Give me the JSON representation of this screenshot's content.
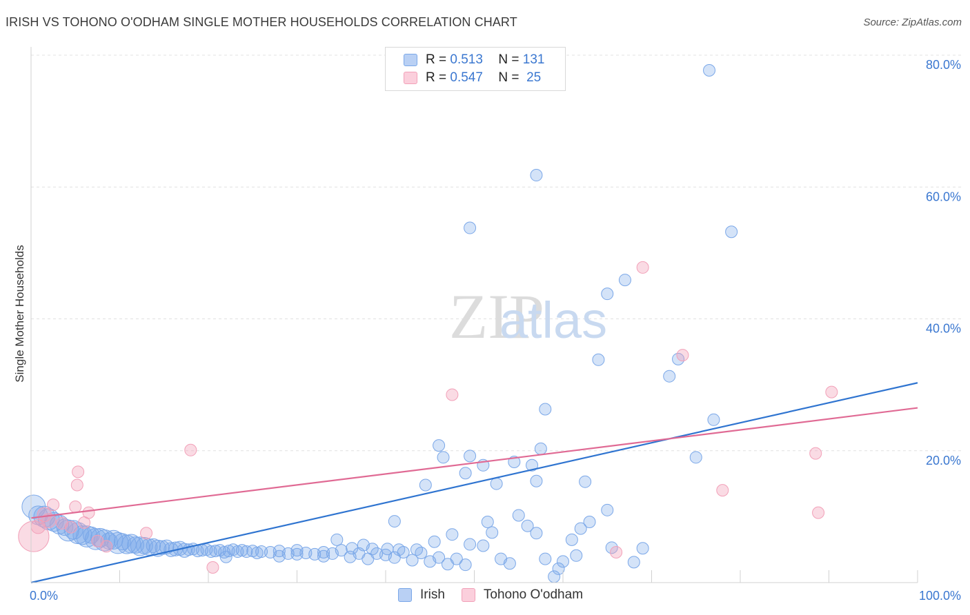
{
  "header": {
    "title": "IRISH VS TOHONO O'ODHAM SINGLE MOTHER HOUSEHOLDS CORRELATION CHART",
    "source": "Source: ZipAtlas.com"
  },
  "watermark": {
    "zip": "ZIP",
    "atlas": "atlas"
  },
  "legend": {
    "r_label": "R =",
    "n_label": "N =",
    "irish": {
      "r": "0.513",
      "n": "131",
      "color": "#7aa7e8"
    },
    "tohono": {
      "r": "0.547",
      "n": "25",
      "color": "#f2a0b8"
    }
  },
  "bottom_legend": {
    "irish": "Irish",
    "tohono": "Tohono O'odham"
  },
  "chart_data": {
    "type": "scatter",
    "title": "IRISH VS TOHONO O'ODHAM SINGLE MOTHER HOUSEHOLDS CORRELATION CHART",
    "xlabel": "",
    "ylabel": "Single Mother Households",
    "xlim": [
      0,
      100
    ],
    "ylim": [
      0,
      80
    ],
    "x_tick_labels": [
      "0.0%",
      "100.0%"
    ],
    "y_ticks": [
      20,
      40,
      60,
      80
    ],
    "y_tick_labels": [
      "20.0%",
      "40.0%",
      "60.0%",
      "80.0%"
    ],
    "series": [
      {
        "name": "Irish",
        "color": "#7aa7e8",
        "trend_color": "#2f74d0",
        "trend": {
          "x": [
            0,
            100
          ],
          "y": [
            0,
            30.3
          ]
        },
        "points": [
          [
            0.3,
            11.5,
            20
          ],
          [
            0.8,
            10.2,
            16
          ],
          [
            1.5,
            10.0,
            18
          ],
          [
            2,
            9.6,
            18
          ],
          [
            2.6,
            9.2,
            16
          ],
          [
            3.2,
            8.8,
            16
          ],
          [
            3.8,
            8.4,
            14
          ],
          [
            4.2,
            7.9,
            18
          ],
          [
            4.8,
            8.0,
            16
          ],
          [
            5.3,
            7.5,
            18
          ],
          [
            5.8,
            7.2,
            16
          ],
          [
            6.3,
            7.0,
            18
          ],
          [
            6.8,
            7.2,
            14
          ],
          [
            7.3,
            6.6,
            18
          ],
          [
            7.8,
            6.8,
            16
          ],
          [
            8.3,
            6.4,
            18
          ],
          [
            8.8,
            6.3,
            14
          ],
          [
            9.3,
            6.5,
            16
          ],
          [
            9.8,
            6.0,
            18
          ],
          [
            10.3,
            6.2,
            14
          ],
          [
            10.8,
            5.8,
            16
          ],
          [
            11.3,
            5.9,
            16
          ],
          [
            11.8,
            5.7,
            14
          ],
          [
            12.3,
            5.5,
            16
          ],
          [
            12.8,
            5.6,
            14
          ],
          [
            13.3,
            5.4,
            14
          ],
          [
            13.8,
            5.6,
            12
          ],
          [
            14.3,
            5.2,
            14
          ],
          [
            14.8,
            5.3,
            12
          ],
          [
            15.3,
            5.4,
            12
          ],
          [
            15.8,
            5.0,
            12
          ],
          [
            16.3,
            5.1,
            12
          ],
          [
            16.8,
            5.2,
            12
          ],
          [
            17.3,
            4.9,
            12
          ],
          [
            17.8,
            5.0,
            10
          ],
          [
            18.3,
            5.1,
            10
          ],
          [
            18.8,
            4.8,
            10
          ],
          [
            19.3,
            4.9,
            10
          ],
          [
            19.8,
            5.0,
            10
          ],
          [
            20.3,
            4.7,
            10
          ],
          [
            20.8,
            4.8,
            10
          ],
          [
            21.3,
            4.9,
            10
          ],
          [
            21.8,
            4.6,
            10
          ],
          [
            22.3,
            4.8,
            10
          ],
          [
            22.8,
            5.0,
            10
          ],
          [
            23.3,
            4.7,
            10
          ],
          [
            23.8,
            4.9,
            10
          ],
          [
            24.3,
            4.7,
            10
          ],
          [
            25,
            4.8,
            10
          ],
          [
            25.5,
            4.5,
            10
          ],
          [
            26,
            4.7,
            10
          ],
          [
            27,
            4.6,
            10
          ],
          [
            28,
            4.8,
            10
          ],
          [
            29,
            4.4,
            10
          ],
          [
            30,
            4.9,
            10
          ],
          [
            31,
            4.5,
            10
          ],
          [
            32,
            4.3,
            10
          ],
          [
            33,
            4.6,
            10
          ],
          [
            34,
            4.4,
            10
          ],
          [
            35,
            4.9,
            10
          ],
          [
            22,
            3.9,
            10
          ],
          [
            28,
            4.0,
            10
          ],
          [
            30,
            4.3,
            10
          ],
          [
            33,
            4.0,
            10
          ],
          [
            36,
            3.9,
            10
          ],
          [
            37,
            4.4,
            10
          ],
          [
            38,
            3.6,
            10
          ],
          [
            39,
            4.4,
            10
          ],
          [
            40,
            4.2,
            10
          ],
          [
            41,
            3.8,
            10
          ],
          [
            42,
            4.6,
            10
          ],
          [
            43,
            3.4,
            10
          ],
          [
            44,
            4.5,
            10
          ],
          [
            45,
            3.2,
            10
          ],
          [
            46,
            3.8,
            10
          ],
          [
            47,
            2.8,
            10
          ],
          [
            48,
            3.6,
            10
          ],
          [
            49,
            2.7,
            10
          ],
          [
            34.5,
            6.5,
            10
          ],
          [
            36.2,
            5.2,
            10
          ],
          [
            37.5,
            5.7,
            10
          ],
          [
            38.5,
            5.1,
            10
          ],
          [
            40.2,
            5.1,
            10
          ],
          [
            41.5,
            5.0,
            10
          ],
          [
            43.5,
            5.0,
            10
          ],
          [
            45.5,
            6.2,
            10
          ],
          [
            47.5,
            7.3,
            10
          ],
          [
            49.5,
            5.8,
            10
          ],
          [
            51,
            5.6,
            10
          ],
          [
            52,
            7.6,
            10
          ],
          [
            53,
            3.6,
            10
          ],
          [
            54,
            2.9,
            10
          ],
          [
            55,
            10.2,
            10
          ],
          [
            56,
            8.6,
            10
          ],
          [
            57,
            7.5,
            10
          ],
          [
            58,
            3.6,
            10
          ],
          [
            59,
            0.9,
            10
          ],
          [
            59.5,
            2.1,
            10
          ],
          [
            60,
            3.2,
            10
          ],
          [
            61,
            6.5,
            10
          ],
          [
            61.5,
            4.1,
            10
          ],
          [
            62,
            8.2,
            10
          ],
          [
            63,
            9.2,
            10
          ],
          [
            65,
            11.0,
            10
          ],
          [
            65.5,
            5.3,
            10
          ],
          [
            68,
            3.1,
            10
          ],
          [
            69,
            5.2,
            10
          ],
          [
            41,
            9.3,
            10
          ],
          [
            44.5,
            14.8,
            10
          ],
          [
            46.5,
            19.0,
            10
          ],
          [
            46,
            20.8,
            10
          ],
          [
            49.5,
            19.2,
            10
          ],
          [
            49,
            16.6,
            10
          ],
          [
            51,
            17.8,
            10
          ],
          [
            51.5,
            9.2,
            10
          ],
          [
            52.5,
            15.0,
            10
          ],
          [
            54.5,
            18.3,
            10
          ],
          [
            56.5,
            17.8,
            10
          ],
          [
            57,
            15.4,
            10
          ],
          [
            57.5,
            20.3,
            10
          ],
          [
            58,
            26.3,
            10
          ],
          [
            62.5,
            15.3,
            10
          ],
          [
            64,
            33.8,
            10
          ],
          [
            65,
            43.8,
            10
          ],
          [
            67,
            45.9,
            10
          ],
          [
            72,
            31.3,
            10
          ],
          [
            73,
            33.9,
            10
          ],
          [
            75,
            19.0,
            10
          ],
          [
            77,
            24.7,
            10
          ],
          [
            79,
            53.2,
            10
          ],
          [
            49.5,
            53.8,
            10
          ],
          [
            57,
            61.8,
            10
          ],
          [
            76.5,
            77.7,
            10
          ]
        ]
      },
      {
        "name": "Tohono O'odham",
        "color": "#f2a0b8",
        "trend_color": "#e06a94",
        "trend": {
          "x": [
            0,
            100
          ],
          "y": [
            9.8,
            26.5
          ]
        },
        "points": [
          [
            0.3,
            7.0,
            26
          ],
          [
            0.8,
            8.5,
            12
          ],
          [
            1.5,
            10.3,
            12
          ],
          [
            2,
            9.4,
            12
          ],
          [
            2.5,
            11.8,
            10
          ],
          [
            3.5,
            9.0,
            10
          ],
          [
            4.5,
            8.4,
            10
          ],
          [
            5,
            11.5,
            10
          ],
          [
            5.2,
            14.8,
            10
          ],
          [
            5.3,
            16.8,
            10
          ],
          [
            6,
            9.1,
            10
          ],
          [
            6.5,
            10.6,
            10
          ],
          [
            7.5,
            6.3,
            10
          ],
          [
            8.5,
            5.5,
            10
          ],
          [
            13,
            7.5,
            10
          ],
          [
            18,
            20.1,
            10
          ],
          [
            20.5,
            2.3,
            10
          ],
          [
            47.5,
            28.5,
            10
          ],
          [
            66,
            4.6,
            10
          ],
          [
            69,
            47.8,
            10
          ],
          [
            73.5,
            34.5,
            10
          ],
          [
            78,
            14.0,
            10
          ],
          [
            88.5,
            19.6,
            10
          ],
          [
            88.8,
            10.6,
            10
          ],
          [
            90.3,
            28.9,
            10
          ]
        ]
      }
    ]
  }
}
